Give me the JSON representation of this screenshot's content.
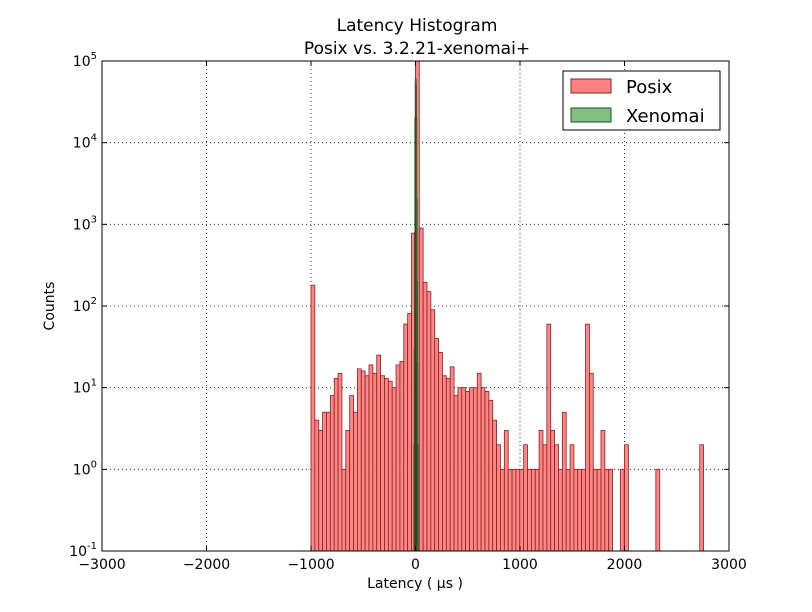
{
  "chart_data": {
    "type": "histogram",
    "title": "Latency Histogram",
    "subtitle": "Posix vs. 3.2.21-xenomai+",
    "xlabel": "Latency ( μs )",
    "ylabel": "Counts",
    "xlim": [
      -3000,
      3000
    ],
    "ylim": [
      0.1,
      100000
    ],
    "yscale": "log",
    "grid": true,
    "legend_position": "top-right",
    "x_ticks": [
      -3000,
      -2000,
      -1000,
      0,
      1000,
      2000,
      3000
    ],
    "x_tick_labels": [
      "−3000",
      "−2000",
      "−1000",
      "0",
      "1000",
      "2000",
      "3000"
    ],
    "y_ticks": [
      0.1,
      1,
      10,
      100,
      1000,
      10000,
      100000
    ],
    "y_tick_labels": [
      {
        "base": "10",
        "exp": "-1"
      },
      {
        "base": "10",
        "exp": "0"
      },
      {
        "base": "10",
        "exp": "1"
      },
      {
        "base": "10",
        "exp": "2"
      },
      {
        "base": "10",
        "exp": "3"
      },
      {
        "base": "10",
        "exp": "4"
      },
      {
        "base": "10",
        "exp": "5"
      }
    ],
    "series": [
      {
        "name": "Posix",
        "color": "#ff8080",
        "edge_color": "#8b2020",
        "bin_width": 37,
        "bins": [
          [
            -1000,
            180
          ],
          [
            -963,
            4
          ],
          [
            -926,
            3
          ],
          [
            -889,
            5
          ],
          [
            -852,
            5
          ],
          [
            -815,
            8
          ],
          [
            -778,
            13
          ],
          [
            -741,
            15
          ],
          [
            -704,
            1
          ],
          [
            -667,
            3
          ],
          [
            -630,
            8
          ],
          [
            -593,
            5
          ],
          [
            -556,
            17
          ],
          [
            -519,
            16
          ],
          [
            -482,
            14
          ],
          [
            -445,
            19
          ],
          [
            -408,
            15
          ],
          [
            -371,
            25
          ],
          [
            -334,
            14
          ],
          [
            -297,
            13
          ],
          [
            -260,
            12
          ],
          [
            -223,
            10
          ],
          [
            -186,
            19
          ],
          [
            -149,
            21
          ],
          [
            -112,
            60
          ],
          [
            -75,
            81
          ],
          [
            -38,
            780
          ],
          [
            -1,
            100000
          ],
          [
            36,
            900
          ],
          [
            73,
            195
          ],
          [
            110,
            150
          ],
          [
            147,
            90
          ],
          [
            184,
            40
          ],
          [
            221,
            27
          ],
          [
            258,
            14
          ],
          [
            295,
            13
          ],
          [
            332,
            18
          ],
          [
            369,
            8
          ],
          [
            406,
            10
          ],
          [
            443,
            10
          ],
          [
            480,
            9
          ],
          [
            517,
            10
          ],
          [
            554,
            10
          ],
          [
            591,
            15
          ],
          [
            628,
            10
          ],
          [
            665,
            9
          ],
          [
            702,
            7
          ],
          [
            739,
            4
          ],
          [
            776,
            2
          ],
          [
            813,
            1
          ],
          [
            850,
            3
          ],
          [
            887,
            1
          ],
          [
            924,
            1
          ],
          [
            961,
            1
          ],
          [
            998,
            1
          ],
          [
            1035,
            2
          ],
          [
            1072,
            1
          ],
          [
            1109,
            1
          ],
          [
            1146,
            1
          ],
          [
            1183,
            3
          ],
          [
            1220,
            2
          ],
          [
            1257,
            60
          ],
          [
            1294,
            3
          ],
          [
            1331,
            2
          ],
          [
            1368,
            1
          ],
          [
            1405,
            5
          ],
          [
            1442,
            1
          ],
          [
            1479,
            2
          ],
          [
            1516,
            1
          ],
          [
            1553,
            1
          ],
          [
            1590,
            1
          ],
          [
            1627,
            60
          ],
          [
            1664,
            15
          ],
          [
            1701,
            1
          ],
          [
            1738,
            1
          ],
          [
            1775,
            3
          ],
          [
            1812,
            1
          ],
          [
            1849,
            1
          ],
          [
            1960,
            1
          ],
          [
            2000,
            2
          ],
          [
            2300,
            1
          ],
          [
            2720,
            2
          ]
        ]
      },
      {
        "name": "Xenomai",
        "color": "#80c080",
        "edge_color": "#205020",
        "bin_width": 3,
        "bins": [
          [
            -15,
            2
          ],
          [
            -12,
            30
          ],
          [
            -9,
            800
          ],
          [
            -6,
            20000
          ],
          [
            -3,
            60000
          ],
          [
            0,
            50000
          ],
          [
            3,
            20000
          ],
          [
            6,
            2000
          ],
          [
            9,
            200
          ],
          [
            12,
            20
          ],
          [
            15,
            2
          ]
        ]
      }
    ]
  }
}
